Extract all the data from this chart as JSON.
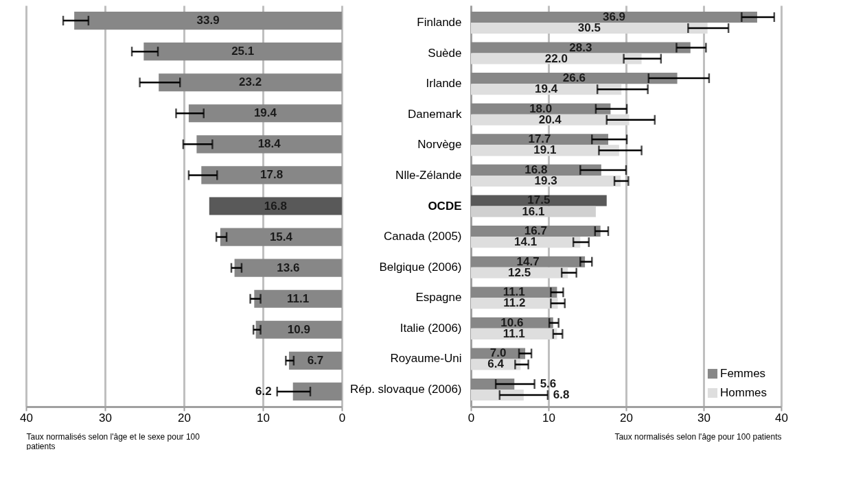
{
  "chart_data": [
    {
      "type": "bar",
      "orientation": "horizontal",
      "tick_labels": "x",
      "grid": "x",
      "data_labels": true,
      "categories": [
        null,
        null,
        null,
        null,
        null,
        null,
        null,
        null,
        null,
        null,
        null,
        null,
        null
      ],
      "values": [
        33.9,
        25.1,
        23.2,
        19.4,
        18.4,
        17.8,
        16.8,
        15.4,
        13.6,
        11.1,
        10.9,
        6.7,
        6.2
      ],
      "colors": [
        "#878787",
        "#878787",
        "#878787",
        "#878787",
        "#878787",
        "#878787",
        "#595959",
        "#878787",
        "#878787",
        "#878787",
        "#878787",
        "#878787",
        "#878787"
      ],
      "errors": [
        [
          32.1,
          35.3
        ],
        [
          23.3,
          26.6
        ],
        [
          20.5,
          25.6
        ],
        [
          17.5,
          21.0
        ],
        [
          16.4,
          20.1
        ],
        [
          15.8,
          19.4
        ],
        null,
        [
          14.6,
          15.9
        ],
        [
          12.7,
          14.0
        ],
        [
          10.3,
          11.6
        ],
        [
          10.3,
          11.2
        ],
        [
          6.1,
          7.1
        ],
        [
          4.0,
          8.2
        ]
      ],
      "xlim": [
        40,
        0
      ],
      "xticks": [
        40,
        30,
        20,
        10,
        0
      ],
      "xlabel": "Taux normalisés selon l'âge et le sexe pour 100 patients"
    },
    {
      "type": "bar",
      "orientation": "horizontal",
      "grid": "x",
      "legend": "bottom right",
      "categories": [
        "Finlande",
        "Suède",
        "Irlande",
        "Danemark",
        "Norvège",
        "Nlle-Zélande",
        "OCDE",
        "Canada (2005)",
        "Belgique (2006)",
        "Espagne",
        "Italie (2006)",
        "Royaume-Uni",
        "Rép. slovaque (2006)"
      ],
      "series": [
        {
          "name": "Femmes",
          "color": "#878787",
          "colors": [
            "#878787",
            "#878787",
            "#878787",
            "#878787",
            "#878787",
            "#878787",
            "#595959",
            "#878787",
            "#878787",
            "#878787",
            "#878787",
            "#878787",
            "#878787"
          ],
          "values": [
            36.9,
            28.3,
            26.6,
            18.0,
            17.7,
            16.8,
            17.5,
            16.7,
            14.7,
            11.1,
            10.6,
            7.0,
            5.6
          ],
          "value_labels": [
            "36.9",
            "28.3",
            "26.6",
            "18.0",
            "17.7",
            "16.8",
            "17.5",
            "16.7",
            "14.7",
            "11.1",
            "10.6",
            "7.0",
            "5.6"
          ],
          "errors": [
            [
              34.9,
              39.1
            ],
            [
              26.5,
              30.3
            ],
            [
              22.9,
              30.7
            ],
            [
              16.1,
              20.1
            ],
            [
              15.6,
              20.1
            ],
            [
              14.1,
              20.0
            ],
            null,
            [
              16.0,
              17.7
            ],
            [
              14.1,
              15.6
            ],
            [
              10.3,
              11.9
            ],
            [
              10.1,
              11.3
            ],
            [
              6.2,
              7.8
            ],
            [
              3.2,
              8.2
            ]
          ]
        },
        {
          "name": "Hommes",
          "color": "#dedede",
          "colors": [
            "#dedede",
            "#dedede",
            "#dedede",
            "#dedede",
            "#dedede",
            "#dedede",
            "#d0d0d0",
            "#dedede",
            "#dedede",
            "#dedede",
            "#dedede",
            "#dedede",
            "#dedede"
          ],
          "values": [
            30.5,
            22.0,
            19.4,
            20.4,
            19.1,
            19.3,
            16.1,
            14.1,
            12.5,
            11.2,
            11.1,
            6.4,
            6.8
          ],
          "value_labels": [
            "30.5",
            "22.0",
            "19.4",
            "20.4",
            "19.1",
            "19.3",
            "16.1",
            "14.1",
            "12.5",
            "11.2",
            "11.1",
            "6.4",
            "6.8"
          ],
          "errors": [
            [
              28.0,
              33.2
            ],
            [
              19.7,
              24.5
            ],
            [
              16.3,
              22.8
            ],
            [
              17.5,
              23.7
            ],
            [
              16.5,
              22.0
            ],
            [
              18.5,
              20.3
            ],
            null,
            [
              13.2,
              15.2
            ],
            [
              11.7,
              13.6
            ],
            [
              10.3,
              12.1
            ],
            [
              10.6,
              11.8
            ],
            [
              5.7,
              7.4
            ],
            [
              3.7,
              9.9
            ]
          ]
        }
      ],
      "xlim": [
        0,
        40
      ],
      "xticks": [
        0,
        10,
        20,
        30,
        40
      ],
      "xlabel": "Taux normalisés selon l'âge pour  100 patients"
    }
  ]
}
